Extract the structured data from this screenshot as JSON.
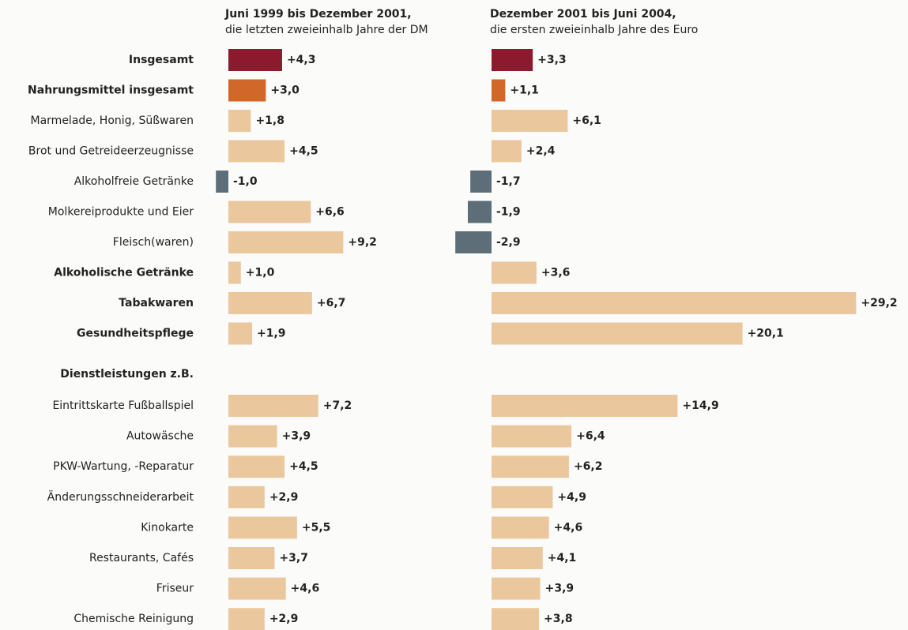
{
  "chart_data": {
    "type": "bar",
    "categories": [
      "Insgesamt",
      "Nahrungsmittel insgesamt",
      "Marmelade, Honig, Süßwaren",
      "Brot und Getreideerzeugnisse",
      "Alkoholfreie Getränke",
      "Molkereiprodukte und Eier",
      "Fleisch(waren)",
      "Alkoholische Getränke",
      "Tabakwaren",
      "Gesundheitspflege",
      "Dienstleistungen z.B.",
      "Eintrittskarte Fußballspiel",
      "Autowäsche",
      "PKW-Wartung, -Reparatur",
      "Änderungsschneiderarbeit",
      "Kinokarte",
      "Restaurants, Cafés",
      "Friseur",
      "Chemische Reinigung"
    ],
    "bold": [
      true,
      true,
      false,
      false,
      false,
      false,
      false,
      true,
      true,
      true,
      true,
      false,
      false,
      false,
      false,
      false,
      false,
      false,
      false
    ],
    "series": [
      {
        "name": "Juni 1999 bis Dezember 2001,",
        "subtitle": "die letzten zweieinhalb Jahre der DM",
        "values": [
          4.3,
          3.0,
          1.8,
          4.5,
          -1.0,
          6.6,
          9.2,
          1.0,
          6.7,
          1.9,
          null,
          7.2,
          3.9,
          4.5,
          2.9,
          5.5,
          3.7,
          4.6,
          2.9
        ],
        "value_labels": [
          "+4,3",
          "+3,0",
          "+1,8",
          "+4,5",
          "-1,0",
          "+6,6",
          "+9,2",
          "+1,0",
          "+6,7",
          "+1,9",
          null,
          "+7,2",
          "+3,9",
          "+4,5",
          "+2,9",
          "+5,5",
          "+3,7",
          "+4,6",
          "+2,9"
        ],
        "colors": [
          "#8b1a2e",
          "#d2672a",
          "#ebc79e",
          "#ebc79e",
          "#5d6e78",
          "#ebc79e",
          "#ebc79e",
          "#ebc79e",
          "#ebc79e",
          "#ebc79e",
          null,
          "#ebc79e",
          "#ebc79e",
          "#ebc79e",
          "#ebc79e",
          "#ebc79e",
          "#ebc79e",
          "#ebc79e",
          "#ebc79e"
        ]
      },
      {
        "name": "Dezember 2001 bis Juni 2004,",
        "subtitle": "die ersten zweieinhalb Jahre des Euro",
        "values": [
          3.3,
          1.1,
          6.1,
          2.4,
          -1.7,
          -1.9,
          -2.9,
          3.6,
          29.2,
          20.1,
          null,
          14.9,
          6.4,
          6.2,
          4.9,
          4.6,
          4.1,
          3.9,
          3.8
        ],
        "value_labels": [
          "+3,3",
          "+1,1",
          "+6,1",
          "+2,4",
          "-1,7",
          "-1,9",
          "-2,9",
          "+3,6",
          "+29,2",
          "+20,1",
          null,
          "+14,9",
          "+6,4",
          "+6,2",
          "+4,9",
          "+4,6",
          "+4,1",
          "+3,9",
          "+3,8"
        ],
        "colors": [
          "#8b1a2e",
          "#d2672a",
          "#ebc79e",
          "#ebc79e",
          "#5d6e78",
          "#5d6e78",
          "#5d6e78",
          "#ebc79e",
          "#ebc79e",
          "#ebc79e",
          null,
          "#ebc79e",
          "#ebc79e",
          "#ebc79e",
          "#ebc79e",
          "#ebc79e",
          "#ebc79e",
          "#ebc79e",
          "#ebc79e"
        ]
      }
    ]
  }
}
